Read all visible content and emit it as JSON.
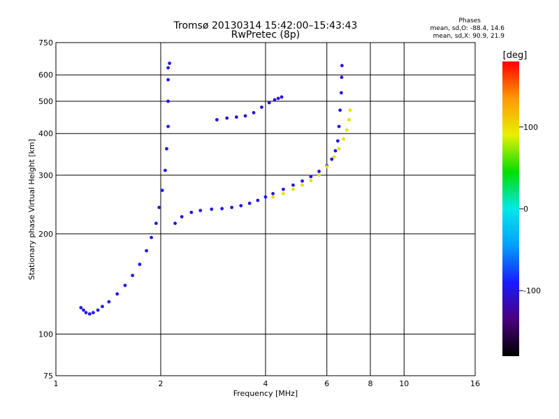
{
  "chart_data": {
    "type": "scatter",
    "title": "Tromsø 20130314 15:42:00–15:43:43",
    "subtitle": "RwPretec (8p)",
    "xlabel": "Frequency [MHz]",
    "ylabel": "Stationary phase Virtual Height [km]",
    "x_scale": "log",
    "y_scale": "log",
    "xlim": [
      1,
      16
    ],
    "ylim": [
      75,
      750
    ],
    "x_ticks": [
      1,
      2,
      4,
      6,
      8,
      10,
      16
    ],
    "y_ticks": [
      75,
      100,
      200,
      300,
      400,
      500,
      600,
      750
    ],
    "grid": true,
    "phase_info": {
      "heading": "Phases",
      "line1": "mean, sd,O: -88.4, 14.6",
      "line2": "mean, sd,X:  90.9, 21.9"
    },
    "colorbar": {
      "label": "[deg]",
      "range": [
        -180,
        180
      ],
      "ticks": [
        100,
        0,
        -100
      ],
      "colormap": "rainbow",
      "colors": [
        "#000000",
        "#4a0080",
        "#1a1aff",
        "#00a0ff",
        "#00e8e8",
        "#00e000",
        "#e8f000",
        "#ff9900",
        "#ff0000"
      ]
    },
    "series": [
      {
        "phase_deg": -95,
        "points": [
          [
            1.18,
            120
          ],
          [
            1.2,
            118
          ],
          [
            1.22,
            116
          ],
          [
            1.25,
            115
          ],
          [
            1.28,
            116
          ],
          [
            1.32,
            118
          ],
          [
            1.36,
            121
          ],
          [
            1.42,
            125
          ],
          [
            1.5,
            132
          ],
          [
            1.58,
            140
          ],
          [
            1.66,
            150
          ],
          [
            1.74,
            162
          ],
          [
            1.82,
            178
          ],
          [
            1.88,
            195
          ],
          [
            1.94,
            215
          ],
          [
            1.98,
            240
          ],
          [
            2.02,
            270
          ],
          [
            2.06,
            310
          ],
          [
            2.08,
            360
          ],
          [
            2.1,
            420
          ],
          [
            2.1,
            500
          ],
          [
            2.1,
            580
          ],
          [
            2.1,
            630
          ],
          [
            2.12,
            650
          ]
        ]
      },
      {
        "phase_deg": -100,
        "points": [
          [
            2.2,
            215
          ],
          [
            2.3,
            225
          ],
          [
            2.45,
            232
          ],
          [
            2.6,
            235
          ],
          [
            2.8,
            237
          ],
          [
            3.0,
            238
          ],
          [
            3.2,
            240
          ],
          [
            3.4,
            243
          ],
          [
            3.6,
            247
          ],
          [
            3.8,
            252
          ],
          [
            4.0,
            258
          ],
          [
            4.2,
            264
          ],
          [
            4.5,
            272
          ],
          [
            4.8,
            280
          ],
          [
            5.1,
            288
          ],
          [
            5.4,
            297
          ],
          [
            5.7,
            308
          ],
          [
            6.0,
            320
          ],
          [
            6.2,
            335
          ],
          [
            6.35,
            355
          ],
          [
            6.45,
            380
          ],
          [
            6.5,
            420
          ],
          [
            6.55,
            470
          ],
          [
            6.6,
            530
          ],
          [
            6.62,
            590
          ],
          [
            6.63,
            640
          ]
        ]
      },
      {
        "phase_deg": -105,
        "points": [
          [
            2.9,
            440
          ],
          [
            3.1,
            445
          ],
          [
            3.3,
            448
          ],
          [
            3.5,
            452
          ],
          [
            3.7,
            462
          ],
          [
            3.9,
            480
          ],
          [
            4.1,
            495
          ],
          [
            4.25,
            505
          ],
          [
            4.35,
            510
          ],
          [
            4.45,
            515
          ]
        ]
      },
      {
        "phase_deg": 100,
        "points": [
          [
            4.2,
            258
          ],
          [
            4.5,
            264
          ],
          [
            4.8,
            272
          ],
          [
            5.1,
            280
          ],
          [
            5.4,
            289
          ],
          [
            5.7,
            300
          ],
          [
            6.0,
            318
          ],
          [
            6.3,
            340
          ],
          [
            6.5,
            360
          ],
          [
            6.7,
            385
          ],
          [
            6.85,
            410
          ],
          [
            6.95,
            440
          ],
          [
            7.0,
            470
          ]
        ]
      }
    ]
  }
}
